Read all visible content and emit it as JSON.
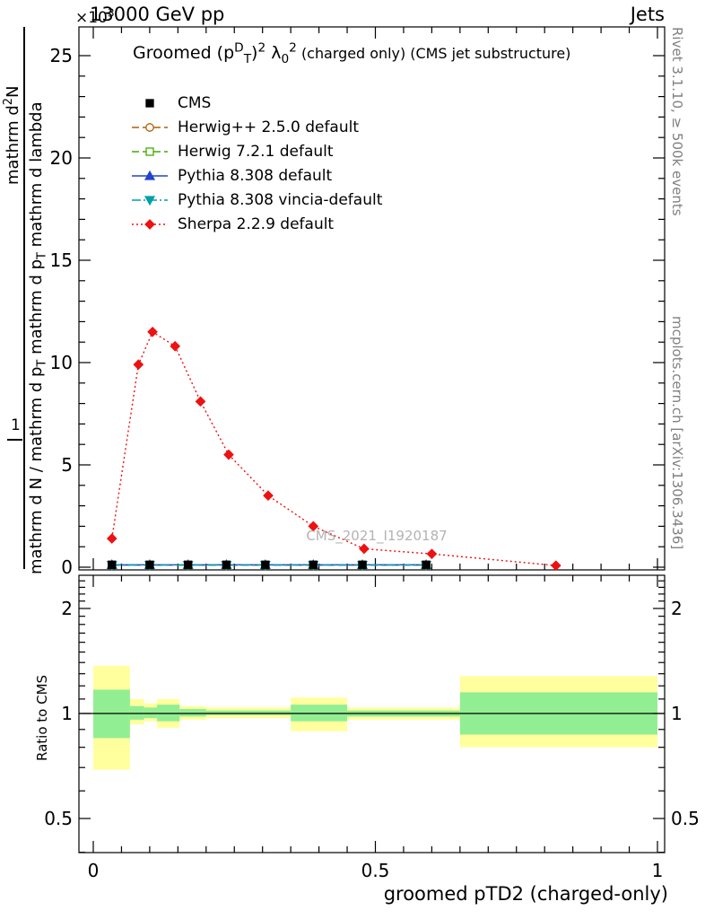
{
  "header": {
    "exponent_parts": [
      {
        "t": "×10"
      },
      {
        "t": "3",
        "s": "sup"
      }
    ],
    "beam": "13000 GeV pp",
    "topic": "Jets"
  },
  "right_margin": {
    "top": "Rivet 3.1.10, ≥ 500k events",
    "bottom": "mcplots.cern.ch [arXiv:1306.3436]"
  },
  "watermark": "CMS_2021_I1920187",
  "x_axis_title": "groomed pTD2 (charged-only)",
  "ratio_axis_title": "Ratio to CMS",
  "y_axis_label": {
    "numerator_parts": [
      {
        "t": "mathrm d"
      },
      {
        "t": "2",
        "s": "sup"
      },
      {
        "t": "N"
      }
    ],
    "one": "1",
    "denominator_parts": [
      {
        "t": "mathrm d N / mathrm d p"
      },
      {
        "t": "T",
        "s": "sub"
      },
      {
        "t": " mathrm d p"
      },
      {
        "t": "T",
        "s": "sub"
      },
      {
        "t": " mathrm d lambda"
      }
    ]
  },
  "plot_title_parts": [
    {
      "t": "Groomed "
    },
    {
      "t": "(p"
    },
    {
      "t": "D",
      "s": "sup"
    },
    {
      "t": "T",
      "s": "sub"
    },
    {
      "t": ")"
    },
    {
      "t": "2",
      "s": "sup"
    },
    {
      "t": " λ"
    },
    {
      "t": "0",
      "s": "sub"
    },
    {
      "t": "2",
      "s": "sup"
    },
    {
      "t": "  (charged only) (CMS jet substructure)",
      "s": "small"
    }
  ],
  "chart_data": {
    "type": "line",
    "title": "Groomed (p_T^D)^2 lambda_0^2 (charged only) (CMS jet substructure)",
    "xlabel": "groomed pTD2 (charged-only)",
    "ylabel": "mathrm d^2N / mathrm d N / mathrm d p_T mathrm d p_T mathrm d lambda",
    "y_exponent": "×10^3",
    "xlim": [
      -0.0255,
      1.0127
    ],
    "x_major_ticks": [
      0,
      0.5,
      1
    ],
    "x_tick_labels": [
      "0",
      "0.5",
      "1"
    ],
    "x_minor_step": 0.05,
    "main": {
      "ylim": [
        0,
        26.4
      ],
      "y_major_ticks": [
        0,
        5,
        10,
        15,
        20,
        25
      ],
      "y_tick_labels": [
        "0",
        "5",
        "10",
        "15",
        "20",
        "25"
      ],
      "y_minor_step": 1,
      "grid": false,
      "legend_position": "top-left"
    },
    "series": [
      {
        "name": "CMS",
        "color": "#000000",
        "line": "none",
        "marker": "square",
        "marker_filled": true,
        "x": [
          0.033,
          0.1,
          0.168,
          0.236,
          0.305,
          0.39,
          0.477,
          0.59
        ],
        "y": [
          0.12,
          0.12,
          0.12,
          0.12,
          0.12,
          0.12,
          0.12,
          0.12
        ]
      },
      {
        "name": "Herwig++ 2.5.0 default",
        "color": "#b45f06",
        "line": "dashed",
        "marker": "circle",
        "marker_filled": false,
        "x": [
          0.033,
          0.1,
          0.168,
          0.236,
          0.305,
          0.39,
          0.477,
          0.59
        ],
        "y": [
          0.1,
          0.1,
          0.1,
          0.1,
          0.1,
          0.1,
          0.1,
          0.1
        ]
      },
      {
        "name": "Herwig 7.2.1 default",
        "color": "#44aa00",
        "line": "dashed",
        "marker": "square",
        "marker_filled": false,
        "x": [
          0.033,
          0.1,
          0.168,
          0.236,
          0.305,
          0.39,
          0.477,
          0.59
        ],
        "y": [
          0.1,
          0.1,
          0.1,
          0.1,
          0.1,
          0.1,
          0.1,
          0.1
        ]
      },
      {
        "name": "Pythia 8.308 default",
        "color": "#2244cc",
        "line": "solid",
        "marker": "triangle-up",
        "marker_filled": true,
        "x": [
          0.033,
          0.1,
          0.168,
          0.236,
          0.305,
          0.39,
          0.477,
          0.59
        ],
        "y": [
          0.12,
          0.12,
          0.12,
          0.12,
          0.12,
          0.12,
          0.12,
          0.12
        ]
      },
      {
        "name": "Pythia 8.308 vincia-default",
        "color": "#00a0a8",
        "line": "dashdot",
        "marker": "triangle-down",
        "marker_filled": true,
        "x": [
          0.033,
          0.1,
          0.168,
          0.236,
          0.305,
          0.39,
          0.477,
          0.59
        ],
        "y": [
          0.1,
          0.1,
          0.1,
          0.1,
          0.1,
          0.1,
          0.1,
          0.1
        ]
      },
      {
        "name": "Sherpa 2.2.9 default",
        "color": "#ee1111",
        "line": "dotted",
        "marker": "diamond",
        "marker_filled": true,
        "x": [
          0.033,
          0.08,
          0.105,
          0.145,
          0.19,
          0.24,
          0.31,
          0.39,
          0.48,
          0.6,
          0.82
        ],
        "y": [
          1.4,
          9.9,
          11.5,
          10.8,
          8.1,
          5.5,
          3.5,
          2.0,
          0.9,
          0.65,
          0.08
        ]
      }
    ],
    "ratio": {
      "ylabel": "Ratio to CMS",
      "scale": "log",
      "ylim": [
        0.4,
        2.49
      ],
      "y_major_ticks": [
        0.5,
        1,
        2
      ],
      "y_tick_labels": [
        "0.5",
        "1",
        "2"
      ],
      "reference_line": 1,
      "band_colors": {
        "yellow": "#ffff9e",
        "green": "#92ee92"
      },
      "bands": [
        {
          "x0": 0.0,
          "x1": 0.065,
          "yellow": [
            0.69,
            1.37
          ],
          "green": [
            0.85,
            1.17
          ]
        },
        {
          "x0": 0.065,
          "x1": 0.09,
          "yellow": [
            0.93,
            1.1
          ],
          "green": [
            0.96,
            1.05
          ]
        },
        {
          "x0": 0.09,
          "x1": 0.113,
          "yellow": [
            0.95,
            1.07
          ],
          "green": [
            0.97,
            1.04
          ]
        },
        {
          "x0": 0.113,
          "x1": 0.153,
          "yellow": [
            0.91,
            1.1
          ],
          "green": [
            0.95,
            1.06
          ]
        },
        {
          "x0": 0.153,
          "x1": 0.2,
          "yellow": [
            0.96,
            1.05
          ],
          "green": [
            0.98,
            1.03
          ]
        },
        {
          "x0": 0.2,
          "x1": 0.35,
          "yellow": [
            0.97,
            1.04
          ],
          "green": [
            0.99,
            1.02
          ]
        },
        {
          "x0": 0.35,
          "x1": 0.45,
          "yellow": [
            0.89,
            1.11
          ],
          "green": [
            0.95,
            1.06
          ]
        },
        {
          "x0": 0.45,
          "x1": 0.65,
          "yellow": [
            0.96,
            1.04
          ],
          "green": [
            0.98,
            1.02
          ]
        },
        {
          "x0": 0.65,
          "x1": 1.0,
          "yellow": [
            0.8,
            1.28
          ],
          "green": [
            0.87,
            1.15
          ]
        }
      ]
    }
  }
}
